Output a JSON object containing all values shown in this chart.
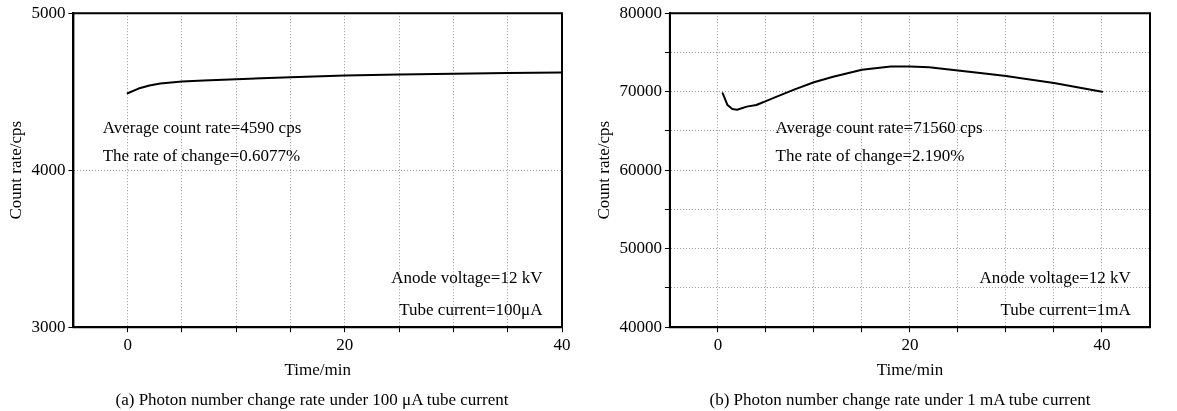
{
  "chart_data": [
    {
      "type": "line",
      "xlabel": "Time/min",
      "ylabel": "Count rate/cps",
      "grid": true,
      "marker": "none",
      "line_style": "solid",
      "xlim": [
        -5,
        40
      ],
      "xticks": [
        0,
        {
          "value": 5,
          "label": null
        },
        {
          "value": 10,
          "label": null
        },
        {
          "value": 15,
          "label": null
        },
        20,
        {
          "value": 25,
          "label": null
        },
        {
          "value": 30,
          "label": null
        },
        {
          "value": 35,
          "label": null
        },
        40
      ],
      "ylim": [
        3000,
        5000
      ],
      "yticks": [
        3000,
        4000,
        5000
      ],
      "series": [
        {
          "color": "#000000",
          "x": [
            0,
            1,
            2,
            3,
            5,
            7,
            10,
            15,
            20,
            25,
            30,
            35,
            40
          ],
          "values": [
            4490,
            4520,
            4540,
            4552,
            4565,
            4572,
            4580,
            4592,
            4603,
            4609,
            4615,
            4619,
            4622
          ]
        }
      ],
      "annotations": [
        "Average count rate=4590 cps",
        "The rate of change=0.6077%",
        "Anode voltage=12 kV",
        "Tube current=100μA",
        "(a) Photon number change rate under 100 μA tube current"
      ]
    },
    {
      "type": "line",
      "xlabel": "Time/min",
      "ylabel": "Count rate/cps",
      "grid": true,
      "marker": "none",
      "line_style": "solid",
      "xlim": [
        -5,
        45
      ],
      "xticks": [
        0,
        {
          "value": 5,
          "label": null
        },
        {
          "value": 10,
          "label": null
        },
        {
          "value": 15,
          "label": null
        },
        20,
        {
          "value": 25,
          "label": null
        },
        {
          "value": 30,
          "label": null
        },
        {
          "value": 35,
          "label": null
        },
        40
      ],
      "ylim": [
        40000,
        80000
      ],
      "yticks": [
        40000,
        {
          "value": 45000,
          "label": null
        },
        50000,
        {
          "value": 55000,
          "label": null
        },
        60000,
        {
          "value": 65000,
          "label": null
        },
        70000,
        {
          "value": 75000,
          "label": null
        },
        80000
      ],
      "series": [
        {
          "color": "#000000",
          "x": [
            0.5,
            1,
            1.5,
            2,
            3,
            4,
            6,
            8,
            10,
            12,
            15,
            18,
            20,
            22,
            25,
            28,
            30,
            35,
            40
          ],
          "values": [
            69800,
            68300,
            67800,
            67700,
            68100,
            68300,
            69300,
            70300,
            71200,
            71900,
            72800,
            73200,
            73200,
            73100,
            72700,
            72300,
            72000,
            71100,
            70000
          ]
        }
      ],
      "annotations": [
        "Average count rate=71560 cps",
        "The rate of change=2.190%",
        "Anode voltage=12 kV",
        "Tube current=1mA",
        "(b) Photon number change rate under 1 mA tube current"
      ]
    }
  ]
}
